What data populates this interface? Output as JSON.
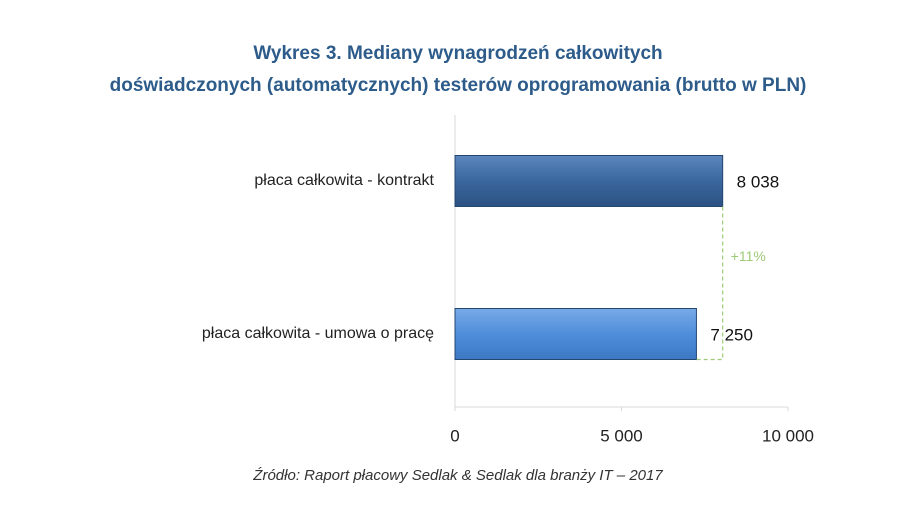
{
  "chart_data": {
    "type": "bar",
    "orientation": "horizontal",
    "title": [
      "Wykres 3. Mediany wynagrodzeń całkowitych",
      "doświadczonych (automatycznych) testerów oprogramowania (brutto w PLN)"
    ],
    "categories": [
      "płaca całkowita - kontrakt",
      "płaca całkowita - umowa o pracę"
    ],
    "values": [
      8038,
      7250
    ],
    "value_labels": [
      "8 038",
      "7 250"
    ],
    "colors": [
      "#3a679e",
      "#4f8edb"
    ],
    "xlim": [
      0,
      10000
    ],
    "xticks": [
      0,
      {
        "value": 5000,
        "label": "5 000"
      },
      {
        "value": 10000,
        "label": "10 000"
      }
    ],
    "annotation": "+11%",
    "annotation_color": "#9fcb78",
    "source": "Źródło: Raport płacowy Sedlak & Sedlak dla branży IT – 2017"
  }
}
